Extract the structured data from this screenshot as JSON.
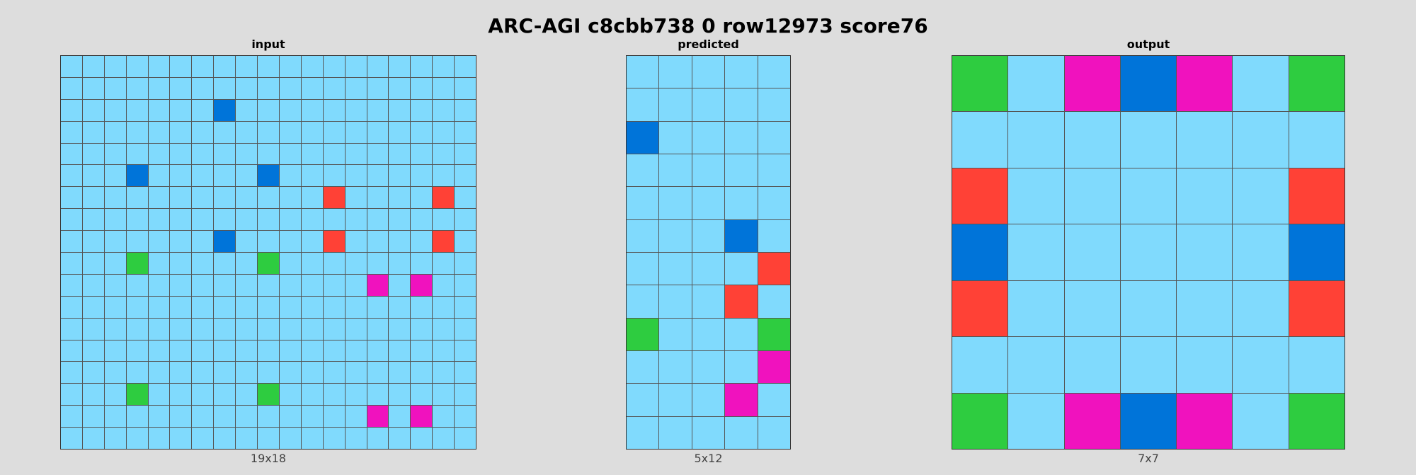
{
  "title": "ARC-AGI c8cbb738 0 row12973 score76",
  "colors": {
    "0": "#80dafd",
    "1": "#0074d9",
    "2": "#ff4136",
    "3": "#2ecc40",
    "4": "#f012be"
  },
  "panels": [
    {
      "label": "input",
      "dims": "19x18",
      "cols": 19,
      "rows": 18,
      "cells": [
        "0000000000000000000",
        "0000000000000000000",
        "0000000100000000000",
        "0000000000000000000",
        "0000000000000000000",
        "0001000001000000000",
        "0000000000002000020",
        "0000000000000000000",
        "0000000100002000020",
        "0003000003000000000",
        "0000000000000040400",
        "0000000000000000000",
        "0000000000000000000",
        "0000000000000000000",
        "0000000000000000000",
        "0003000003000000000",
        "0000000000000040400",
        "0000000000000000000"
      ]
    },
    {
      "label": "predicted",
      "dims": "5x12",
      "cols": 5,
      "rows": 12,
      "cells": [
        "00000",
        "00000",
        "10000",
        "00000",
        "00000",
        "00010",
        "00002",
        "00020",
        "30003",
        "00004",
        "00040",
        "00000"
      ]
    },
    {
      "label": "output",
      "dims": "7x7",
      "cols": 7,
      "rows": 7,
      "cells": [
        "3041403",
        "0000000",
        "2000002",
        "1000001",
        "2000002",
        "0000000",
        "3041403"
      ]
    }
  ]
}
